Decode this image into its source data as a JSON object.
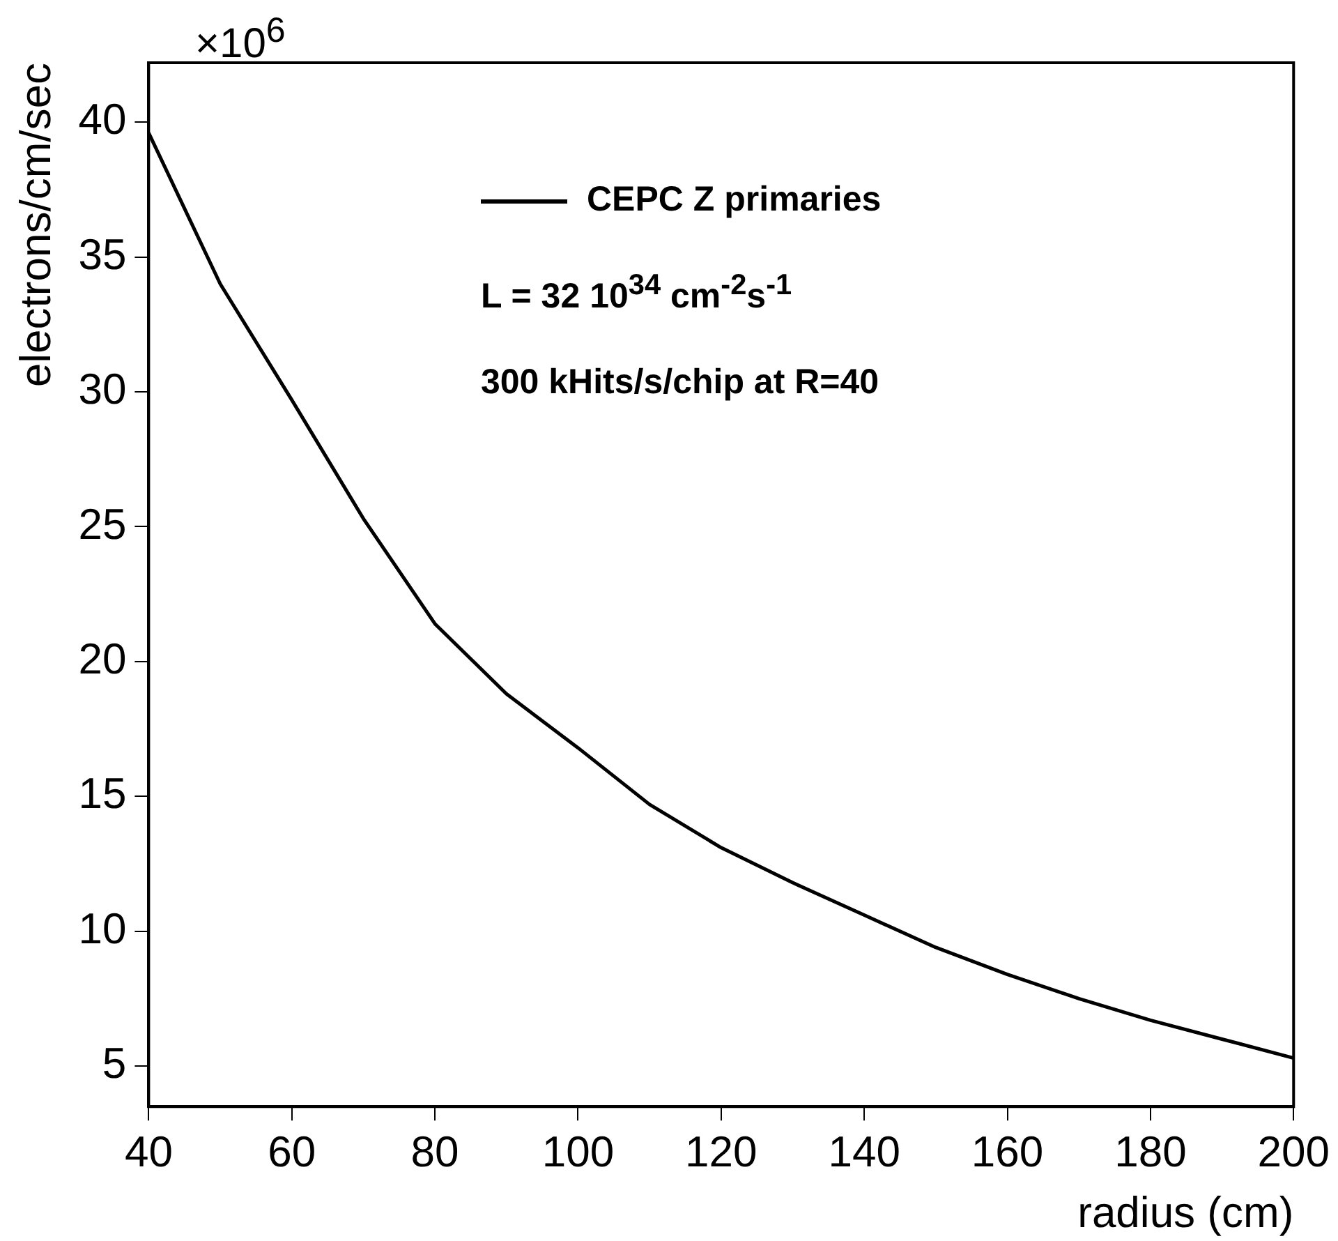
{
  "chart_data": {
    "type": "line",
    "xlabel": "radius (cm)",
    "ylabel": "electrons/cm/sec",
    "x": [
      40,
      50,
      60,
      70,
      80,
      90,
      100,
      110,
      120,
      130,
      140,
      150,
      160,
      170,
      180,
      190,
      200
    ],
    "series": [
      {
        "name": "CEPC Z primaries",
        "color": "#000000",
        "values": [
          39.6,
          34.0,
          29.7,
          25.3,
          21.4,
          18.8,
          16.8,
          14.7,
          13.1,
          11.8,
          10.6,
          9.4,
          8.4,
          7.5,
          6.7,
          6.0,
          5.3
        ]
      }
    ],
    "annotations": [
      "×10$^{6}$",
      "L = 32 10$^{34}$ cm$^{-2}$s$^{-1}$",
      "300 kHits/s/chip at R=40"
    ],
    "xlim": [
      40,
      200
    ],
    "xticks": [
      40,
      60,
      80,
      100,
      120,
      140,
      160,
      180,
      200
    ],
    "ylim": [
      3.5,
      42.2
    ],
    "yticks": [
      5,
      10,
      15,
      20,
      25,
      30,
      35,
      40
    ],
    "grid": false,
    "legend": "top right",
    "marker": "none",
    "line_style": "solid"
  }
}
